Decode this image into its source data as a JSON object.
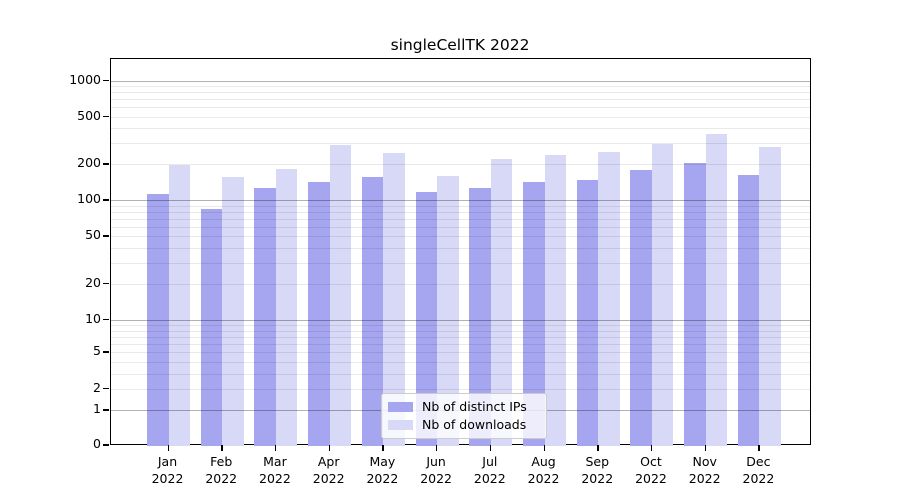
{
  "chart_data": {
    "type": "bar",
    "title": "singleCellTK 2022",
    "categories": [
      "Jan",
      "Feb",
      "Mar",
      "Apr",
      "May",
      "Jun",
      "Jul",
      "Aug",
      "Sep",
      "Oct",
      "Nov",
      "Dec"
    ],
    "x_tick_second_line": "2022",
    "series": [
      {
        "name": "Nb of distinct IPs",
        "color": "#a5a5f0",
        "values": [
          114,
          84,
          127,
          142,
          158,
          117,
          127,
          141,
          148,
          180,
          206,
          164
        ]
      },
      {
        "name": "Nb of downloads",
        "color": "#d8d8f7",
        "values": [
          197,
          157,
          184,
          292,
          249,
          161,
          222,
          241,
          254,
          294,
          358,
          281
        ]
      }
    ],
    "y_tick_labels": [
      0,
      1,
      2,
      5,
      10,
      20,
      50,
      100,
      200,
      500,
      1000
    ],
    "ylim": [
      0,
      1500
    ],
    "yscale": "symlog",
    "grid": true,
    "legend_position": "lower center",
    "xlabel": "",
    "ylabel": ""
  },
  "colors": {
    "bar_distinct_ips": "#a5a5f0",
    "bar_downloads": "#d8d8f7",
    "grid_major": "#b3b3b3",
    "grid_minor": "#e9e9e9",
    "spine": "#000000",
    "background": "#ffffff",
    "text": "#000000",
    "legend_border": "#cccccc"
  }
}
